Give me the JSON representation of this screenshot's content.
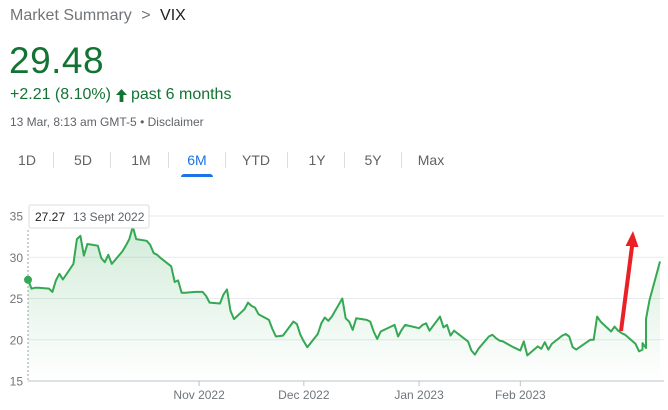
{
  "breadcrumb": {
    "parent": "Market Summary",
    "separator": ">",
    "current": "VIX"
  },
  "quote": {
    "price": "29.48",
    "change": "+2.21 (8.10%)",
    "period": "past 6 months",
    "timestamp": "13 Mar, 8:13 am GMT-5",
    "bullet": "•",
    "disclaimer": "Disclaimer",
    "arrow_icon": "arrow-up-icon"
  },
  "tabs": [
    {
      "label": "1D",
      "active": false
    },
    {
      "label": "5D",
      "active": false
    },
    {
      "label": "1M",
      "active": false
    },
    {
      "label": "6M",
      "active": true
    },
    {
      "label": "YTD",
      "active": false
    },
    {
      "label": "1Y",
      "active": false
    },
    {
      "label": "5Y",
      "active": false
    },
    {
      "label": "Max",
      "active": false
    }
  ],
  "colors": {
    "line": "#34a853",
    "price": "#137333",
    "accent": "#1a73e8",
    "annotation_arrow": "#ea2027"
  },
  "chart_data": {
    "type": "area",
    "ylim": [
      15,
      35
    ],
    "yticks": [
      15,
      20,
      25,
      30,
      35
    ],
    "xtick_labels": [
      "Nov 2022",
      "Dec 2022",
      "Jan 2023",
      "Feb 2023"
    ],
    "xtick_positions": [
      "2022-11-01",
      "2022-12-01",
      "2023-01-03",
      "2023-02-01"
    ],
    "x_range": [
      "2022-09-13",
      "2023-03-13"
    ],
    "grid": true,
    "tooltip": {
      "value": "27.27",
      "date": "13 Sept 2022",
      "x": "2022-09-13",
      "y": 27.27
    },
    "series": [
      {
        "points": [
          [
            "2022-09-13",
            27.27
          ],
          [
            "2022-09-14",
            26.2
          ],
          [
            "2022-09-15",
            26.3
          ],
          [
            "2022-09-16",
            26.3
          ],
          [
            "2022-09-19",
            26.2
          ],
          [
            "2022-09-20",
            25.8
          ],
          [
            "2022-09-21",
            27.2
          ],
          [
            "2022-09-22",
            28.0
          ],
          [
            "2022-09-23",
            27.3
          ],
          [
            "2022-09-26",
            29.2
          ],
          [
            "2022-09-27",
            32.2
          ],
          [
            "2022-09-28",
            32.6
          ],
          [
            "2022-09-29",
            30.2
          ],
          [
            "2022-09-30",
            31.6
          ],
          [
            "2022-10-03",
            31.4
          ],
          [
            "2022-10-04",
            29.9
          ],
          [
            "2022-10-05",
            29.4
          ],
          [
            "2022-10-06",
            30.3
          ],
          [
            "2022-10-07",
            29.2
          ],
          [
            "2022-10-10",
            30.7
          ],
          [
            "2022-10-11",
            31.4
          ],
          [
            "2022-10-12",
            32.2
          ],
          [
            "2022-10-13",
            33.7
          ],
          [
            "2022-10-14",
            32.2
          ],
          [
            "2022-10-17",
            32.0
          ],
          [
            "2022-10-18",
            31.5
          ],
          [
            "2022-10-19",
            30.5
          ],
          [
            "2022-10-20",
            30.3
          ],
          [
            "2022-10-21",
            29.9
          ],
          [
            "2022-10-24",
            28.9
          ],
          [
            "2022-10-25",
            27.0
          ],
          [
            "2022-10-26",
            27.2
          ],
          [
            "2022-10-27",
            25.7
          ],
          [
            "2022-10-28",
            25.7
          ],
          [
            "2022-10-31",
            25.8
          ],
          [
            "2022-11-01",
            25.8
          ],
          [
            "2022-11-02",
            25.8
          ],
          [
            "2022-11-03",
            25.3
          ],
          [
            "2022-11-04",
            24.5
          ],
          [
            "2022-11-07",
            24.4
          ],
          [
            "2022-11-08",
            25.5
          ],
          [
            "2022-11-09",
            26.1
          ],
          [
            "2022-11-10",
            23.5
          ],
          [
            "2022-11-11",
            22.5
          ],
          [
            "2022-11-14",
            23.7
          ],
          [
            "2022-11-15",
            24.5
          ],
          [
            "2022-11-16",
            24.1
          ],
          [
            "2022-11-17",
            23.9
          ],
          [
            "2022-11-18",
            23.1
          ],
          [
            "2022-11-21",
            22.4
          ],
          [
            "2022-11-22",
            21.3
          ],
          [
            "2022-11-23",
            20.4
          ],
          [
            "2022-11-25",
            20.5
          ],
          [
            "2022-11-28",
            22.2
          ],
          [
            "2022-11-29",
            21.9
          ],
          [
            "2022-11-30",
            20.6
          ],
          [
            "2022-12-01",
            19.8
          ],
          [
            "2022-12-02",
            19.1
          ],
          [
            "2022-12-05",
            20.7
          ],
          [
            "2022-12-06",
            22.0
          ],
          [
            "2022-12-07",
            22.7
          ],
          [
            "2022-12-08",
            22.3
          ],
          [
            "2022-12-09",
            22.8
          ],
          [
            "2022-12-12",
            25.0
          ],
          [
            "2022-12-13",
            22.6
          ],
          [
            "2022-12-14",
            22.2
          ],
          [
            "2022-12-15",
            21.2
          ],
          [
            "2022-12-16",
            22.6
          ],
          [
            "2022-12-19",
            22.4
          ],
          [
            "2022-12-20",
            22.2
          ],
          [
            "2022-12-21",
            21.0
          ],
          [
            "2022-12-22",
            20.1
          ],
          [
            "2022-12-23",
            21.0
          ],
          [
            "2022-12-27",
            21.8
          ],
          [
            "2022-12-28",
            20.4
          ],
          [
            "2022-12-29",
            21.2
          ],
          [
            "2022-12-30",
            21.8
          ],
          [
            "2023-01-03",
            21.4
          ],
          [
            "2023-01-04",
            21.8
          ],
          [
            "2023-01-05",
            22.0
          ],
          [
            "2023-01-06",
            21.1
          ],
          [
            "2023-01-09",
            22.8
          ],
          [
            "2023-01-10",
            21.5
          ],
          [
            "2023-01-11",
            21.8
          ],
          [
            "2023-01-12",
            20.5
          ],
          [
            "2023-01-13",
            21.1
          ],
          [
            "2023-01-17",
            19.8
          ],
          [
            "2023-01-18",
            18.7
          ],
          [
            "2023-01-19",
            18.2
          ],
          [
            "2023-01-20",
            18.9
          ],
          [
            "2023-01-23",
            20.4
          ],
          [
            "2023-01-24",
            20.6
          ],
          [
            "2023-01-25",
            20.2
          ],
          [
            "2023-01-26",
            19.9
          ],
          [
            "2023-01-27",
            19.8
          ],
          [
            "2023-01-30",
            19.1
          ],
          [
            "2023-01-31",
            18.9
          ],
          [
            "2023-02-01",
            18.7
          ],
          [
            "2023-02-02",
            19.8
          ],
          [
            "2023-02-03",
            18.1
          ],
          [
            "2023-02-06",
            19.2
          ],
          [
            "2023-02-07",
            18.9
          ],
          [
            "2023-02-08",
            19.7
          ],
          [
            "2023-02-09",
            18.8
          ],
          [
            "2023-02-10",
            19.5
          ],
          [
            "2023-02-13",
            20.5
          ],
          [
            "2023-02-14",
            20.7
          ],
          [
            "2023-02-15",
            20.4
          ],
          [
            "2023-02-16",
            19.1
          ],
          [
            "2023-02-17",
            18.8
          ],
          [
            "2023-02-21",
            20.0
          ],
          [
            "2023-02-22",
            20.0
          ],
          [
            "2023-02-23",
            22.8
          ],
          [
            "2023-02-24",
            22.2
          ],
          [
            "2023-02-27",
            21.0
          ],
          [
            "2023-02-28",
            21.6
          ],
          [
            "2023-03-01",
            21.1
          ],
          [
            "2023-03-02",
            20.8
          ],
          [
            "2023-03-03",
            20.6
          ],
          [
            "2023-03-06",
            19.5
          ],
          [
            "2023-03-07",
            18.6
          ],
          [
            "2023-03-08",
            18.8
          ],
          [
            "2023-03-08",
            19.6
          ],
          [
            "2023-03-09",
            19.0
          ],
          [
            "2023-03-09",
            22.5
          ],
          [
            "2023-03-10",
            24.8
          ],
          [
            "2023-03-13",
            29.48
          ]
        ]
      }
    ]
  }
}
